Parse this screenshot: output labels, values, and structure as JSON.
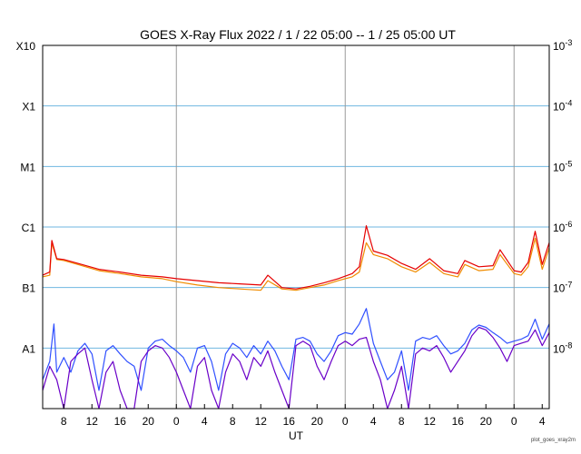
{
  "chart_data": {
    "type": "line",
    "title": "GOES X-Ray Flux   2022 /  1 / 22   05:00 --  1 / 25   05:00   UT",
    "xlabel": "UT",
    "ylabel": "",
    "x_range_hours": [
      0,
      72
    ],
    "y_scale": "log",
    "ylim_flux": [
      1e-09,
      0.001
    ],
    "x_ticks": [
      {
        "h": 3,
        "label": "8"
      },
      {
        "h": 7,
        "label": "12"
      },
      {
        "h": 11,
        "label": "16"
      },
      {
        "h": 15,
        "label": "20"
      },
      {
        "h": 19,
        "label": "0"
      },
      {
        "h": 23,
        "label": "4"
      },
      {
        "h": 27,
        "label": "8"
      },
      {
        "h": 31,
        "label": "12"
      },
      {
        "h": 35,
        "label": "16"
      },
      {
        "h": 39,
        "label": "20"
      },
      {
        "h": 43,
        "label": "0"
      },
      {
        "h": 47,
        "label": "4"
      },
      {
        "h": 51,
        "label": "8"
      },
      {
        "h": 55,
        "label": "12"
      },
      {
        "h": 59,
        "label": "16"
      },
      {
        "h": 63,
        "label": "20"
      },
      {
        "h": 67,
        "label": "0"
      },
      {
        "h": 71,
        "label": "4"
      }
    ],
    "day_boundaries_hours": [
      19,
      43,
      67
    ],
    "left_labels": [
      {
        "flux": 0.001,
        "label": "X10"
      },
      {
        "flux": 0.0001,
        "label": "X1"
      },
      {
        "flux": 1e-05,
        "label": "M1"
      },
      {
        "flux": 1e-06,
        "label": "C1"
      },
      {
        "flux": 1e-07,
        "label": "B1"
      },
      {
        "flux": 1e-08,
        "label": "A1"
      }
    ],
    "right_labels": [
      {
        "flux": 0.001,
        "base": "10",
        "exp": "-3"
      },
      {
        "flux": 0.0001,
        "base": "10",
        "exp": "-4"
      },
      {
        "flux": 1e-05,
        "base": "10",
        "exp": "-5"
      },
      {
        "flux": 1e-06,
        "base": "10",
        "exp": "-6"
      },
      {
        "flux": 1e-07,
        "base": "10",
        "exp": "-7"
      },
      {
        "flux": 1e-08,
        "base": "10",
        "exp": "-8"
      }
    ],
    "class_lines_flux": [
      0.0001,
      1e-05,
      1e-06,
      1e-07,
      1e-08
    ],
    "series": [
      {
        "color": "#f08c00",
        "points": [
          [
            0,
            1.5e-07
          ],
          [
            1,
            1.6e-07
          ],
          [
            1.3,
            5.5e-07
          ],
          [
            2,
            2.9e-07
          ],
          [
            3,
            2.8e-07
          ],
          [
            5,
            2.4e-07
          ],
          [
            8,
            1.9e-07
          ],
          [
            11,
            1.7e-07
          ],
          [
            14,
            1.5e-07
          ],
          [
            17,
            1.4e-07
          ],
          [
            19,
            1.25e-07
          ],
          [
            22,
            1.1e-07
          ],
          [
            25,
            1e-07
          ],
          [
            28,
            9.5e-08
          ],
          [
            31,
            9e-08
          ],
          [
            32,
            1.3e-07
          ],
          [
            34,
            9.5e-08
          ],
          [
            36,
            9e-08
          ],
          [
            38,
            1e-07
          ],
          [
            40,
            1.1e-07
          ],
          [
            42,
            1.3e-07
          ],
          [
            44,
            1.5e-07
          ],
          [
            45,
            1.8e-07
          ],
          [
            46,
            5.5e-07
          ],
          [
            47,
            3.5e-07
          ],
          [
            49,
            3e-07
          ],
          [
            51,
            2.2e-07
          ],
          [
            53,
            1.8e-07
          ],
          [
            55,
            2.6e-07
          ],
          [
            57,
            1.7e-07
          ],
          [
            59,
            1.5e-07
          ],
          [
            60,
            2.4e-07
          ],
          [
            62,
            1.9e-07
          ],
          [
            64,
            2e-07
          ],
          [
            65,
            3.5e-07
          ],
          [
            67,
            1.7e-07
          ],
          [
            68,
            1.6e-07
          ],
          [
            69,
            2.2e-07
          ],
          [
            70,
            6.5e-07
          ],
          [
            71,
            2e-07
          ],
          [
            72,
            4.5e-07
          ]
        ]
      },
      {
        "color": "#e60000",
        "points": [
          [
            0,
            1.6e-07
          ],
          [
            1,
            1.8e-07
          ],
          [
            1.3,
            6e-07
          ],
          [
            2,
            3e-07
          ],
          [
            3,
            2.9e-07
          ],
          [
            5,
            2.5e-07
          ],
          [
            8,
            2e-07
          ],
          [
            11,
            1.8e-07
          ],
          [
            14,
            1.6e-07
          ],
          [
            17,
            1.5e-07
          ],
          [
            19,
            1.4e-07
          ],
          [
            22,
            1.3e-07
          ],
          [
            25,
            1.2e-07
          ],
          [
            28,
            1.15e-07
          ],
          [
            31,
            1.1e-07
          ],
          [
            32,
            1.6e-07
          ],
          [
            34,
            1e-07
          ],
          [
            36,
            9.5e-08
          ],
          [
            38,
            1.05e-07
          ],
          [
            40,
            1.2e-07
          ],
          [
            42,
            1.4e-07
          ],
          [
            44,
            1.7e-07
          ],
          [
            45,
            2.2e-07
          ],
          [
            46,
            1.05e-06
          ],
          [
            47,
            4e-07
          ],
          [
            49,
            3.4e-07
          ],
          [
            51,
            2.5e-07
          ],
          [
            53,
            2e-07
          ],
          [
            55,
            3e-07
          ],
          [
            57,
            1.9e-07
          ],
          [
            59,
            1.7e-07
          ],
          [
            60,
            2.8e-07
          ],
          [
            62,
            2.2e-07
          ],
          [
            64,
            2.3e-07
          ],
          [
            65,
            4.2e-07
          ],
          [
            67,
            1.9e-07
          ],
          [
            68,
            1.8e-07
          ],
          [
            69,
            2.6e-07
          ],
          [
            70,
            8.5e-07
          ],
          [
            71,
            2.4e-07
          ],
          [
            72,
            5.5e-07
          ]
        ]
      },
      {
        "color": "#3050ff",
        "points": [
          [
            0,
            3e-09
          ],
          [
            1,
            6e-09
          ],
          [
            1.6,
            2.5e-08
          ],
          [
            2,
            4e-09
          ],
          [
            3,
            7e-09
          ],
          [
            4,
            4e-09
          ],
          [
            5,
            9e-09
          ],
          [
            6,
            1.2e-08
          ],
          [
            7,
            8e-09
          ],
          [
            8,
            2e-09
          ],
          [
            9,
            9e-09
          ],
          [
            10,
            1.1e-08
          ],
          [
            11,
            8e-09
          ],
          [
            12,
            6e-09
          ],
          [
            13,
            5e-09
          ],
          [
            14,
            2e-09
          ],
          [
            15,
            1e-08
          ],
          [
            16,
            1.3e-08
          ],
          [
            17,
            1.4e-08
          ],
          [
            18,
            1.1e-08
          ],
          [
            19,
            9e-09
          ],
          [
            20,
            7e-09
          ],
          [
            21,
            4e-09
          ],
          [
            22,
            1e-08
          ],
          [
            23,
            1.1e-08
          ],
          [
            24,
            6e-09
          ],
          [
            25,
            2e-09
          ],
          [
            26,
            8e-09
          ],
          [
            27,
            1.2e-08
          ],
          [
            28,
            1e-08
          ],
          [
            29,
            7e-09
          ],
          [
            30,
            1.1e-08
          ],
          [
            31,
            8e-09
          ],
          [
            32,
            1.3e-08
          ],
          [
            33,
            9e-09
          ],
          [
            34,
            5e-09
          ],
          [
            35,
            3e-09
          ],
          [
            36,
            1.4e-08
          ],
          [
            37,
            1.5e-08
          ],
          [
            38,
            1.3e-08
          ],
          [
            39,
            8e-09
          ],
          [
            40,
            6e-09
          ],
          [
            41,
            9e-09
          ],
          [
            42,
            1.6e-08
          ],
          [
            43,
            1.8e-08
          ],
          [
            44,
            1.7e-08
          ],
          [
            45,
            2.5e-08
          ],
          [
            46,
            4.5e-08
          ],
          [
            47,
            1.2e-08
          ],
          [
            48,
            6e-09
          ],
          [
            49,
            3e-09
          ],
          [
            50,
            4e-09
          ],
          [
            51,
            9e-09
          ],
          [
            52,
            2e-09
          ],
          [
            53,
            1.3e-08
          ],
          [
            54,
            1.5e-08
          ],
          [
            55,
            1.4e-08
          ],
          [
            56,
            1.6e-08
          ],
          [
            57,
            1.1e-08
          ],
          [
            58,
            8e-09
          ],
          [
            59,
            9e-09
          ],
          [
            60,
            1.2e-08
          ],
          [
            61,
            2e-08
          ],
          [
            62,
            2.4e-08
          ],
          [
            63,
            2.2e-08
          ],
          [
            64,
            1.8e-08
          ],
          [
            65,
            1.5e-08
          ],
          [
            66,
            1.2e-08
          ],
          [
            67,
            1.3e-08
          ],
          [
            68,
            1.4e-08
          ],
          [
            69,
            1.6e-08
          ],
          [
            70,
            3e-08
          ],
          [
            71,
            1.4e-08
          ],
          [
            72,
            2.5e-08
          ]
        ]
      },
      {
        "color": "#6a00c8",
        "points": [
          [
            0,
            2e-09
          ],
          [
            1,
            5e-09
          ],
          [
            2,
            3e-09
          ],
          [
            3,
            1e-09
          ],
          [
            4,
            6e-09
          ],
          [
            5,
            8e-09
          ],
          [
            6,
            1e-08
          ],
          [
            7,
            3e-09
          ],
          [
            8,
            1e-09
          ],
          [
            9,
            4e-09
          ],
          [
            10,
            6e-09
          ],
          [
            11,
            2e-09
          ],
          [
            12,
            1e-09
          ],
          [
            13,
            1e-09
          ],
          [
            14,
            6e-09
          ],
          [
            15,
            9e-09
          ],
          [
            16,
            1.1e-08
          ],
          [
            17,
            1e-08
          ],
          [
            18,
            7e-09
          ],
          [
            19,
            4e-09
          ],
          [
            20,
            2e-09
          ],
          [
            21,
            1e-09
          ],
          [
            22,
            5e-09
          ],
          [
            23,
            7e-09
          ],
          [
            24,
            2e-09
          ],
          [
            25,
            1e-09
          ],
          [
            26,
            4e-09
          ],
          [
            27,
            8e-09
          ],
          [
            28,
            6e-09
          ],
          [
            29,
            3e-09
          ],
          [
            30,
            7e-09
          ],
          [
            31,
            5e-09
          ],
          [
            32,
            9e-09
          ],
          [
            33,
            4e-09
          ],
          [
            34,
            2e-09
          ],
          [
            35,
            1e-09
          ],
          [
            36,
            1.1e-08
          ],
          [
            37,
            1.3e-08
          ],
          [
            38,
            1.1e-08
          ],
          [
            39,
            5e-09
          ],
          [
            40,
            3e-09
          ],
          [
            41,
            6e-09
          ],
          [
            42,
            1.1e-08
          ],
          [
            43,
            1.3e-08
          ],
          [
            44,
            1.1e-08
          ],
          [
            45,
            1.4e-08
          ],
          [
            46,
            1.5e-08
          ],
          [
            47,
            6e-09
          ],
          [
            48,
            3e-09
          ],
          [
            49,
            1e-09
          ],
          [
            50,
            2e-09
          ],
          [
            51,
            5e-09
          ],
          [
            52,
            1e-09
          ],
          [
            53,
            8e-09
          ],
          [
            54,
            1e-08
          ],
          [
            55,
            9e-09
          ],
          [
            56,
            1.1e-08
          ],
          [
            57,
            7e-09
          ],
          [
            58,
            4e-09
          ],
          [
            59,
            6e-09
          ],
          [
            60,
            9e-09
          ],
          [
            61,
            1.6e-08
          ],
          [
            62,
            2.2e-08
          ],
          [
            63,
            2e-08
          ],
          [
            64,
            1.5e-08
          ],
          [
            65,
            1e-08
          ],
          [
            66,
            6e-09
          ],
          [
            67,
            1.1e-08
          ],
          [
            68,
            1.2e-08
          ],
          [
            69,
            1.3e-08
          ],
          [
            70,
            2e-08
          ],
          [
            71,
            1.1e-08
          ],
          [
            72,
            1.8e-08
          ]
        ]
      }
    ],
    "grid_color": "#6fb7e0",
    "day_line_color": "#9a9a9a"
  },
  "credit": "plot_goes_xray2m"
}
